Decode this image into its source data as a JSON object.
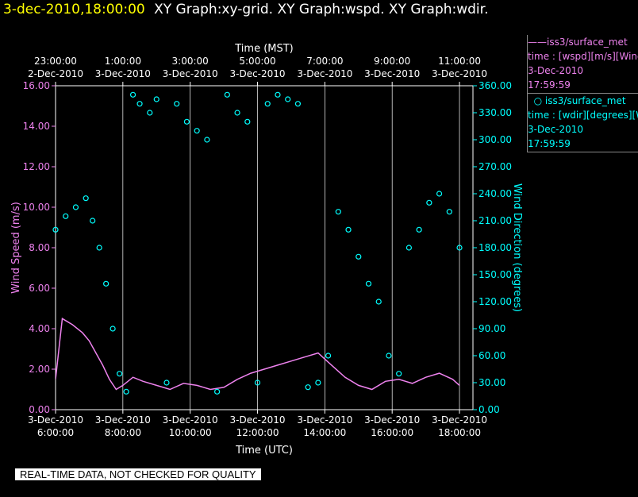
{
  "header": {
    "date": "3-dec-2010,18:00:00",
    "titles": "XY Graph:xy-grid.  XY Graph:wspd.  XY Graph:wdir."
  },
  "legend": {
    "series1_name": "iss3/surface_met",
    "series1_desc": "time : [wspd][m/s][Wind",
    "series1_date": "3-Dec-2010",
    "series1_time": "17:59:59",
    "series2_name": "iss3/surface_met",
    "series2_desc": "time : [wdir][degrees][W",
    "series2_date": "3-Dec-2010",
    "series2_time": "17:59:59"
  },
  "qc_notice": "REAL-TIME DATA, NOT CHECKED FOR QUALITY",
  "colors": {
    "wspd": "#ee82ee",
    "wdir": "#00ffff",
    "grid": "#ffffff",
    "axis": "#ffffff",
    "background": "#000000",
    "header_date": "#ffff00"
  },
  "chart_data": {
    "type": "scatter",
    "top_axis_title": "Time (MST)",
    "bottom_axis_title": "Time (UTC)",
    "ylabel_left": "Wind Speed (m/s)",
    "ylabel_right": "Wind Direction (degrees)",
    "top_ticks": [
      {
        "time": "23:00:00",
        "date": "2-Dec-2010"
      },
      {
        "time": "1:00:00",
        "date": "3-Dec-2010"
      },
      {
        "time": "3:00:00",
        "date": "3-Dec-2010"
      },
      {
        "time": "5:00:00",
        "date": "3-Dec-2010"
      },
      {
        "time": "7:00:00",
        "date": "3-Dec-2010"
      },
      {
        "time": "9:00:00",
        "date": "3-Dec-2010"
      },
      {
        "time": "11:00:00",
        "date": "3-Dec-2010"
      }
    ],
    "bottom_ticks": [
      {
        "date": "3-Dec-2010",
        "time": "6:00:00"
      },
      {
        "date": "3-Dec-2010",
        "time": "8:00:00"
      },
      {
        "date": "3-Dec-2010",
        "time": "10:00:00"
      },
      {
        "date": "3-Dec-2010",
        "time": "12:00:00"
      },
      {
        "date": "3-Dec-2010",
        "time": "14:00:00"
      },
      {
        "date": "3-Dec-2010",
        "time": "16:00:00"
      },
      {
        "date": "3-Dec-2010",
        "time": "18:00:00"
      }
    ],
    "left_ticks": [
      "0.00",
      "2.00",
      "4.00",
      "6.00",
      "8.00",
      "10.00",
      "12.00",
      "14.00",
      "16.00"
    ],
    "right_ticks": [
      "0.00",
      "30.00",
      "60.00",
      "90.00",
      "120.00",
      "150.00",
      "180.00",
      "210.00",
      "240.00",
      "270.00",
      "300.00",
      "330.00",
      "360.00"
    ],
    "x_range_utc_hours": [
      6,
      18.4
    ],
    "ylim_left": [
      0,
      16
    ],
    "ylim_right": [
      0,
      360
    ],
    "grid": "vertical",
    "series": [
      {
        "name": "iss3/surface_met wspd",
        "units": "m/s",
        "style": "line",
        "x_hours_utc": [
          6.0,
          6.2,
          6.5,
          6.8,
          7.0,
          7.2,
          7.4,
          7.6,
          7.8,
          8.0,
          8.3,
          8.6,
          9.0,
          9.4,
          9.8,
          10.2,
          10.6,
          11.0,
          11.4,
          11.8,
          12.2,
          12.6,
          13.0,
          13.4,
          13.8,
          14.2,
          14.6,
          15.0,
          15.4,
          15.8,
          16.2,
          16.6,
          17.0,
          17.4,
          17.8,
          18.0
        ],
        "values": [
          1.5,
          4.5,
          4.2,
          3.8,
          3.4,
          2.8,
          2.2,
          1.5,
          1.0,
          1.2,
          1.6,
          1.4,
          1.2,
          1.0,
          1.3,
          1.2,
          1.0,
          1.1,
          1.5,
          1.8,
          2.0,
          2.2,
          2.4,
          2.6,
          2.8,
          2.2,
          1.6,
          1.2,
          1.0,
          1.4,
          1.5,
          1.3,
          1.6,
          1.8,
          1.5,
          1.2
        ]
      },
      {
        "name": "iss3/surface_met wdir",
        "units": "degrees",
        "style": "points",
        "x_hours_utc": [
          6.0,
          6.3,
          6.6,
          6.9,
          7.1,
          7.3,
          7.5,
          7.7,
          7.9,
          8.1,
          8.3,
          8.5,
          8.8,
          9.0,
          9.3,
          9.6,
          9.9,
          10.2,
          10.5,
          10.8,
          11.1,
          11.4,
          11.7,
          12.0,
          12.3,
          12.6,
          12.9,
          13.2,
          13.5,
          13.8,
          14.1,
          14.4,
          14.7,
          15.0,
          15.3,
          15.6,
          15.9,
          16.2,
          16.5,
          16.8,
          17.1,
          17.4,
          17.7,
          18.0
        ],
        "values": [
          200,
          215,
          225,
          235,
          210,
          180,
          140,
          90,
          40,
          20,
          350,
          340,
          330,
          345,
          30,
          340,
          320,
          310,
          300,
          20,
          350,
          330,
          320,
          30,
          340,
          350,
          345,
          340,
          25,
          30,
          60,
          220,
          200,
          170,
          140,
          120,
          60,
          40,
          180,
          200,
          230,
          240,
          220,
          180
        ]
      }
    ]
  }
}
